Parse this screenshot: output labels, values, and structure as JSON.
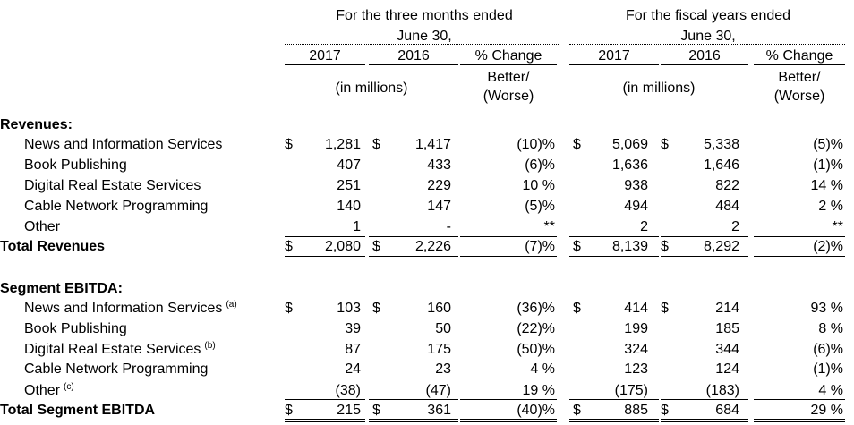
{
  "header": {
    "group1_line1": "For the three months ended",
    "group1_line2": "June 30,",
    "group2_line1": "For the fiscal years ended",
    "group2_line2": "June 30,",
    "year_2017": "2017",
    "year_2016": "2016",
    "pct_change": "% Change",
    "better": "Better/",
    "worse": "(Worse)",
    "in_millions": "(in millions)"
  },
  "revenues": {
    "heading": "Revenues:",
    "rows": [
      {
        "label": "News and Information Services",
        "q17": "1,281",
        "q16": "1,417",
        "qpct": "(10)%",
        "f17": "5,069",
        "f16": "5,338",
        "fpct": "(5)%"
      },
      {
        "label": "Book Publishing",
        "q17": "407",
        "q16": "433",
        "qpct": "(6)%",
        "f17": "1,636",
        "f16": "1,646",
        "fpct": "(1)%"
      },
      {
        "label": "Digital Real Estate Services",
        "q17": "251",
        "q16": "229",
        "qpct": "10 %",
        "f17": "938",
        "f16": "822",
        "fpct": "14 %"
      },
      {
        "label": "Cable Network Programming",
        "q17": "140",
        "q16": "147",
        "qpct": "(5)%",
        "f17": "494",
        "f16": "484",
        "fpct": "2 %"
      },
      {
        "label": "Other",
        "q17": "1",
        "q16": "-",
        "qpct": "**",
        "f17": "2",
        "f16": "2",
        "fpct": "**"
      }
    ],
    "total": {
      "label": "Total Revenues",
      "q17": "2,080",
      "q16": "2,226",
      "qpct": "(7)%",
      "f17": "8,139",
      "f16": "8,292",
      "fpct": "(2)%"
    }
  },
  "ebitda": {
    "heading": "Segment EBITDA:",
    "rows": [
      {
        "label": "News and Information Services",
        "note": "(a)",
        "q17": "103",
        "q16": "160",
        "qpct": "(36)%",
        "f17": "414",
        "f16": "214",
        "fpct": "93 %"
      },
      {
        "label": "Book Publishing",
        "note": "",
        "q17": "39",
        "q16": "50",
        "qpct": "(22)%",
        "f17": "199",
        "f16": "185",
        "fpct": "8 %"
      },
      {
        "label": "Digital Real Estate Services",
        "note": "(b)",
        "q17": "87",
        "q16": "175",
        "qpct": "(50)%",
        "f17": "324",
        "f16": "344",
        "fpct": "(6)%"
      },
      {
        "label": "Cable Network Programming",
        "note": "",
        "q17": "24",
        "q16": "23",
        "qpct": "4 %",
        "f17": "123",
        "f16": "124",
        "fpct": "(1)%"
      },
      {
        "label": "Other",
        "note": "(c)",
        "q17": "(38)",
        "q16": "(47)",
        "qpct": "19 %",
        "f17": "(175)",
        "f16": "(183)",
        "fpct": "4 %"
      }
    ],
    "total": {
      "label": "Total Segment EBITDA",
      "q17": "215",
      "q16": "361",
      "qpct": "(40)%",
      "f17": "885",
      "f16": "684",
      "fpct": "29 %"
    }
  },
  "currency_symbol": "$"
}
